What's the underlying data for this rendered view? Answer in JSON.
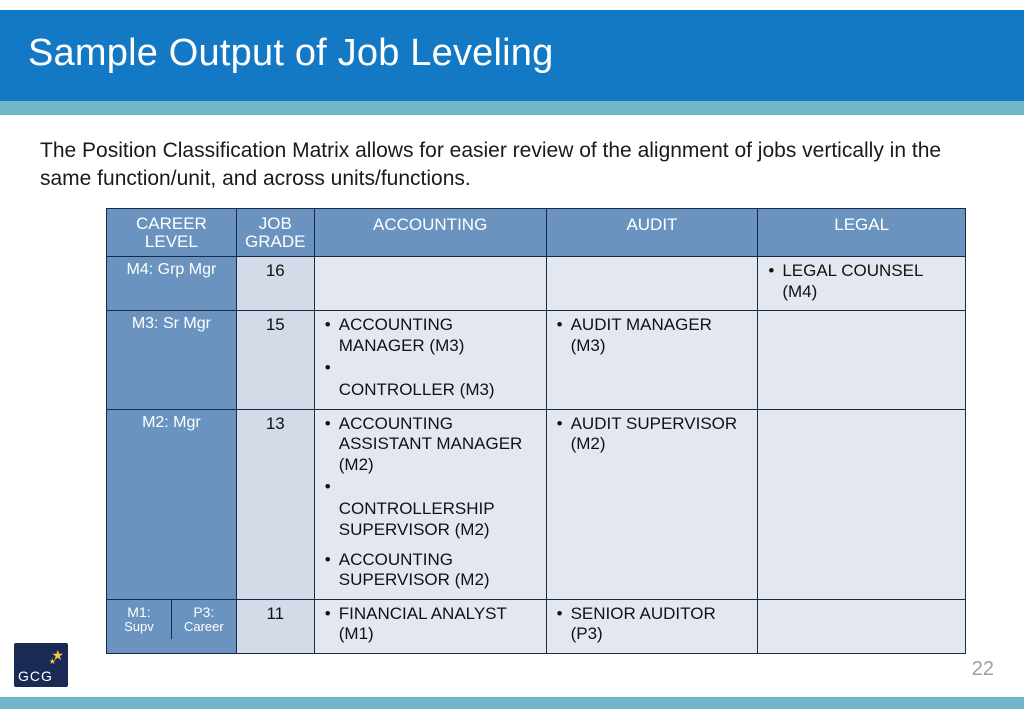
{
  "colors": {
    "title_bg": "#1379c4",
    "sub_bg": "#71b7c9",
    "header_bg": "#6b93c0",
    "career_col_bg": "#6b93c0",
    "grade_col_bg": "#d3dbe8",
    "cell_bg": "#e3e8f0",
    "border": "#1a2a44"
  },
  "title": "Sample Output of Job Leveling",
  "intro": "The Position Classification Matrix allows for easier review of the alignment of jobs vertically in the same function/unit, and across units/functions.",
  "page_number": "22",
  "logo_text": "GCG",
  "table": {
    "headers": {
      "career_level": "CAREER LEVEL",
      "job_grade": "JOB GRADE",
      "accounting": "ACCOUNTING",
      "audit": "AUDIT",
      "legal": "LEGAL"
    },
    "rows": [
      {
        "career": [
          "M4: Grp Mgr"
        ],
        "grade": "16",
        "accounting": [],
        "audit": [],
        "legal": [
          "LEGAL COUNSEL (M4)"
        ]
      },
      {
        "career": [
          "M3: Sr Mgr"
        ],
        "grade": "15",
        "accounting": [
          "ACCOUNTING MANAGER (M3)",
          "",
          "CONTROLLER (M3)"
        ],
        "audit": [
          "AUDIT MANAGER (M3)"
        ],
        "legal": []
      },
      {
        "career": [
          "M2: Mgr"
        ],
        "grade": "13",
        "accounting": [
          "ACCOUNTING ASSISTANT MANAGER (M2)",
          "",
          "CONTROLLERSHIP SUPERVISOR (M2)",
          "+ACCOUNTING SUPERVISOR (M2)"
        ],
        "audit": [
          "AUDIT SUPERVISOR (M2)"
        ],
        "legal": []
      },
      {
        "career": [
          "M1: Supv",
          "P3: Career"
        ],
        "grade": "11",
        "accounting": [
          "FINANCIAL ANALYST (M1)"
        ],
        "audit": [
          "SENIOR AUDITOR (P3)"
        ],
        "legal": []
      }
    ]
  }
}
